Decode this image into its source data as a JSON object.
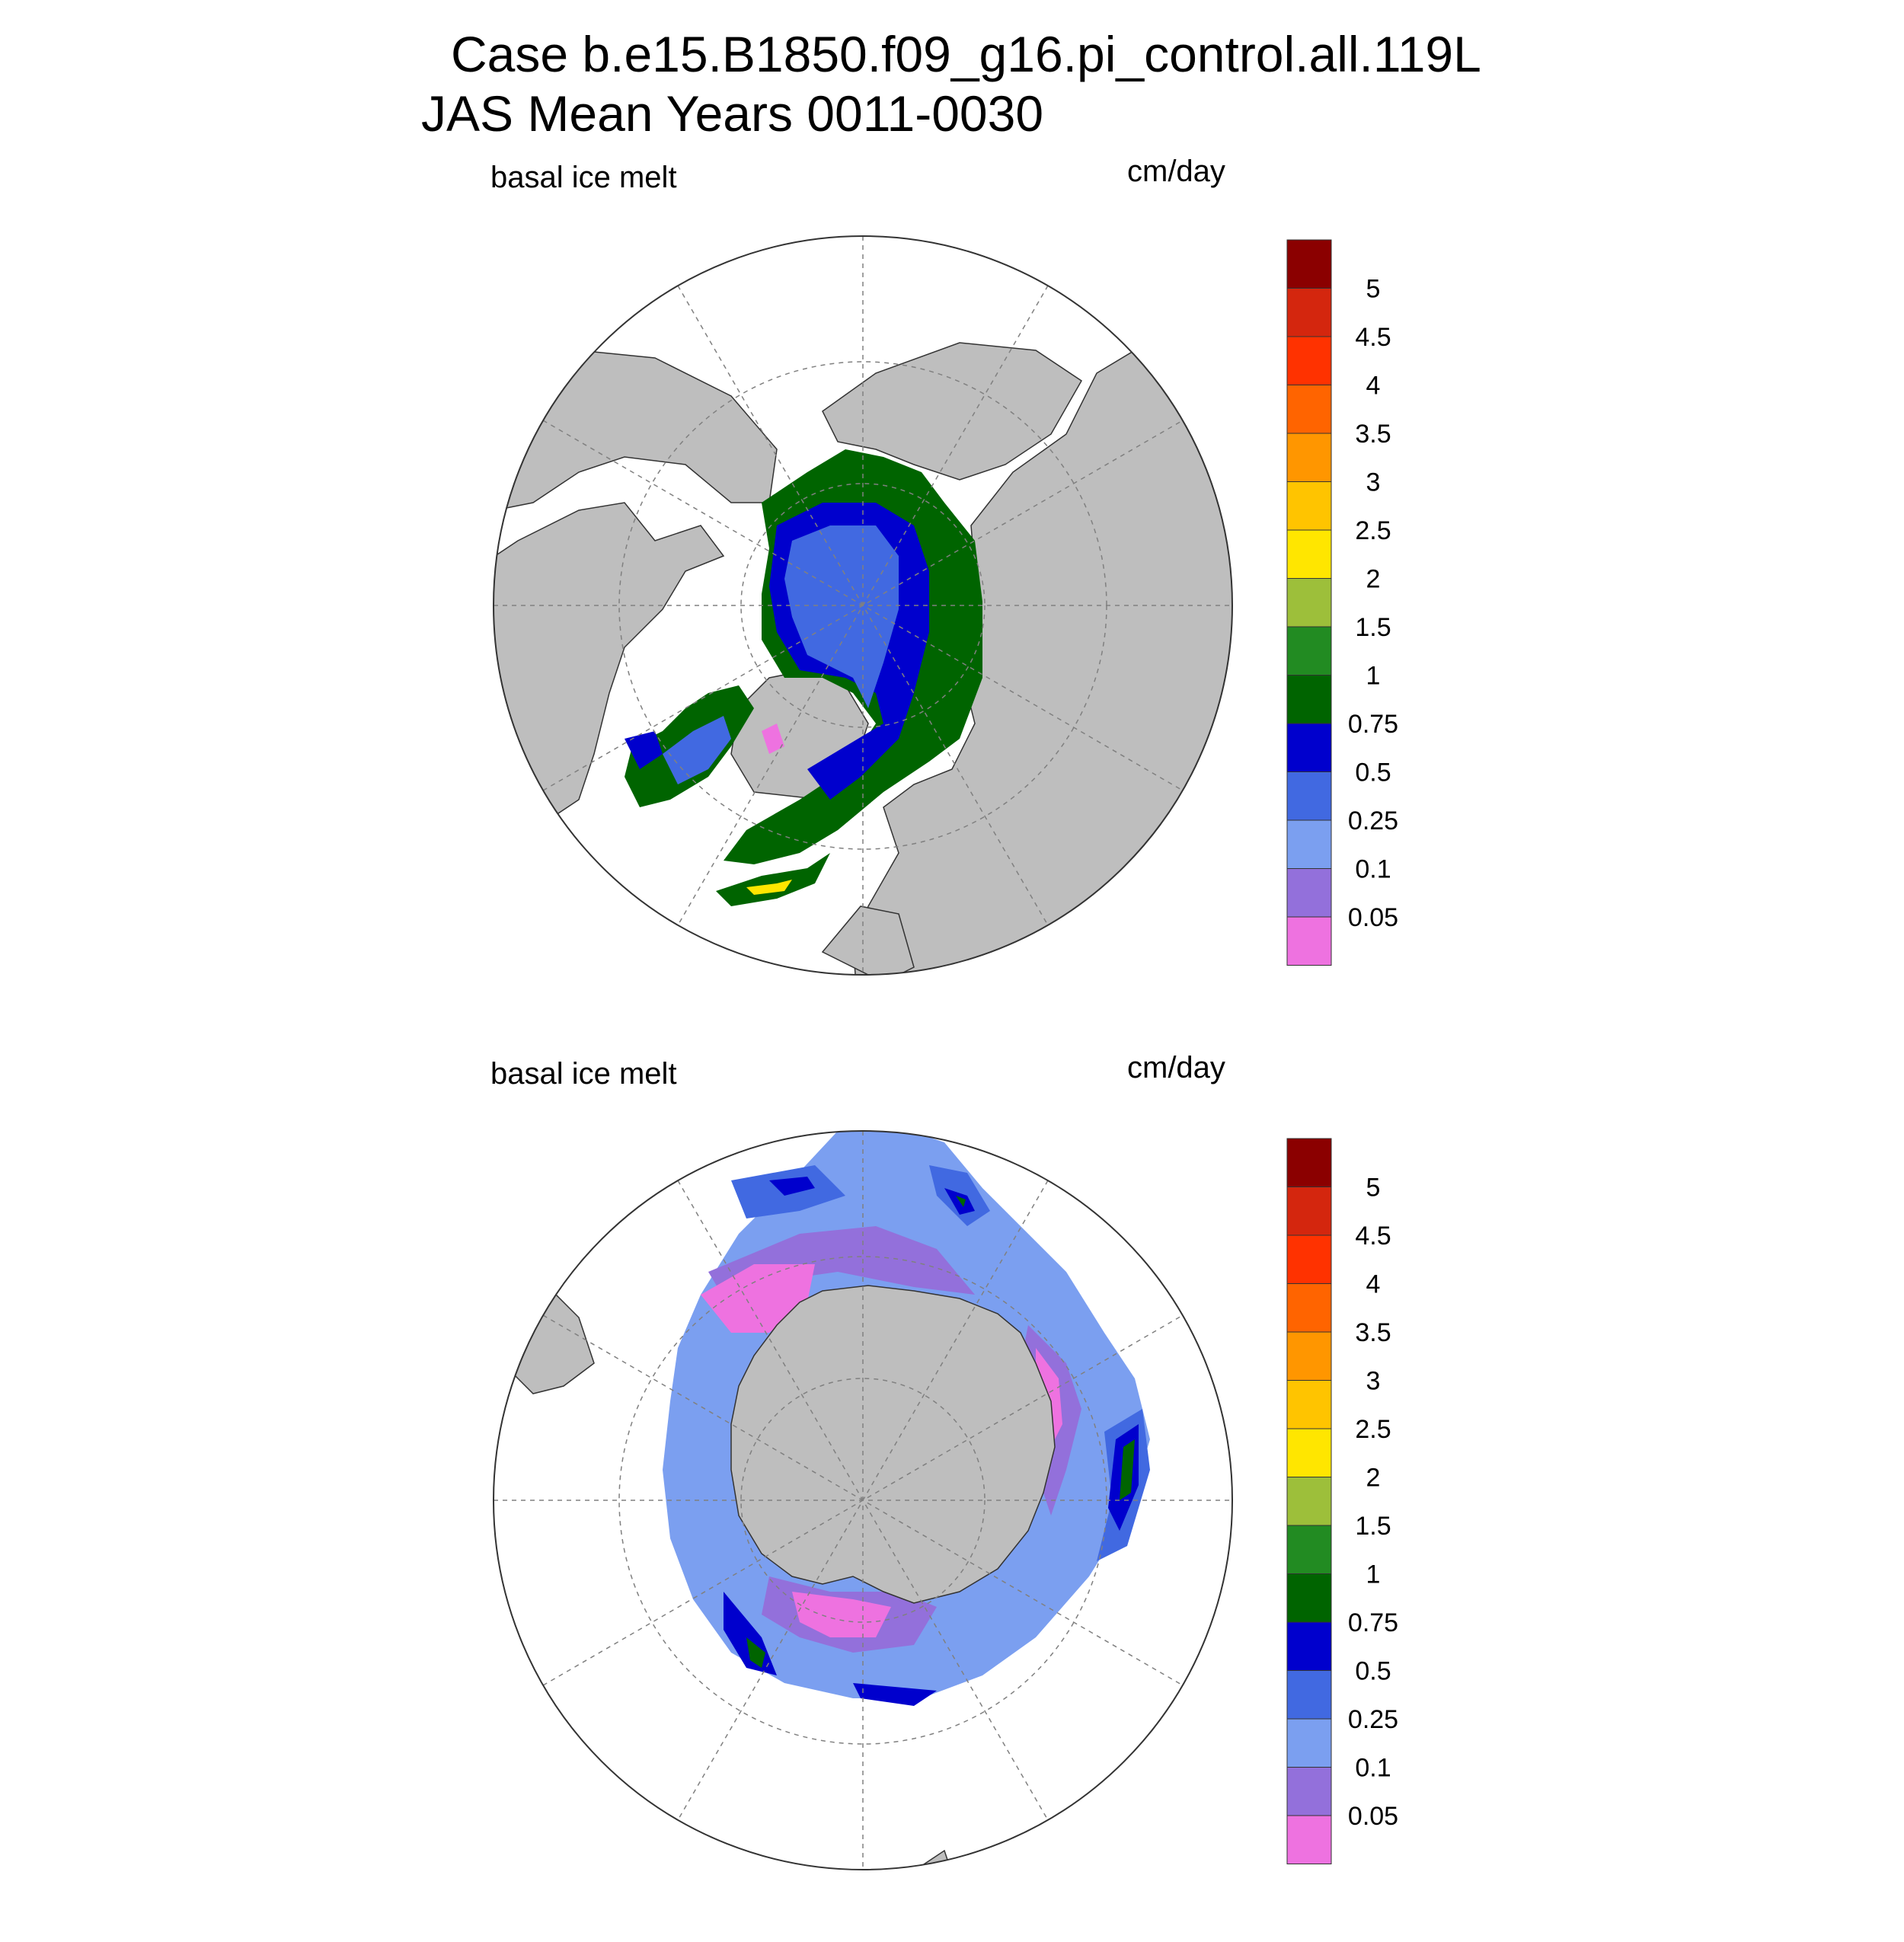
{
  "header": {
    "case_line": "Case b.e15.B1850.f09_g16.pi_control.all.119L",
    "period_line": "JAS Mean   Years 0011-0030"
  },
  "panels": [
    {
      "id": "north",
      "variable": "basal ice melt",
      "units": "cm/day",
      "hemisphere": "Arctic (north polar stereographic)"
    },
    {
      "id": "south",
      "variable": "basal ice melt",
      "units": "cm/day",
      "hemisphere": "Antarctic (south polar stereographic)"
    }
  ],
  "colorbar": {
    "labels": [
      "5",
      "4.5",
      "4",
      "3.5",
      "3",
      "2.5",
      "2",
      "1.5",
      "1",
      "0.75",
      "0.5",
      "0.25",
      "0.1",
      "0.05"
    ],
    "colors": [
      "#8b0000",
      "#d4260e",
      "#ff3200",
      "#ff6400",
      "#ff9600",
      "#ffc400",
      "#ffe600",
      "#9dbf3a",
      "#228b22",
      "#006400",
      "#0000cd",
      "#4169e1",
      "#7b9ff0",
      "#9370db",
      "#ee72e0"
    ]
  },
  "style": {
    "land": "#bebebe",
    "ocean": "#ffffff",
    "grid": "#808080"
  }
}
